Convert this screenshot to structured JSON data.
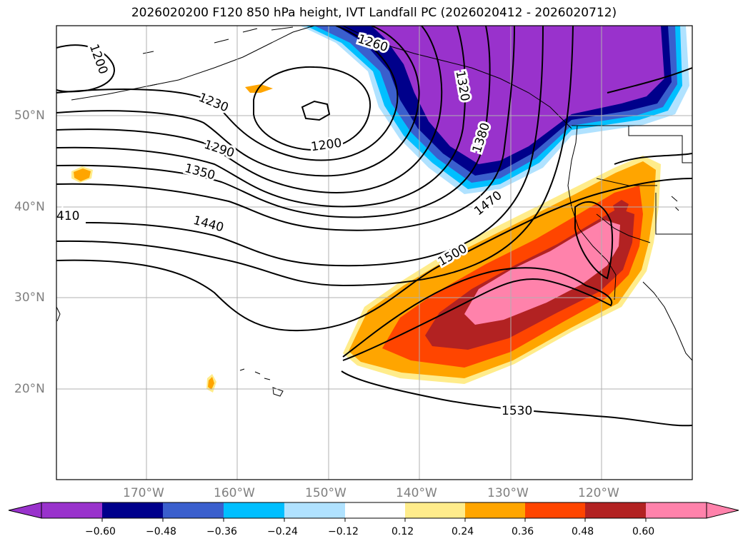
{
  "title": "2026020200 F120 850 hPa height, IVT Landfall PC (2026020412 - 2026020712)",
  "lat_labels": [
    "50°N",
    "40°N",
    "30°N",
    "20°N"
  ],
  "lon_labels": [
    "170°W",
    "160°W",
    "150°W",
    "140°W",
    "130°W",
    "120°W"
  ],
  "contour_labels": [
    "1200",
    "1200",
    "1230",
    "1260",
    "1290",
    "1320",
    "1350",
    "1380",
    "410",
    "1440",
    "1470",
    "1500",
    "1530"
  ],
  "colorbar": {
    "ticks": [
      "−0.60",
      "−0.48",
      "−0.36",
      "−0.24",
      "−0.12",
      "0.12",
      "0.24",
      "0.36",
      "0.48",
      "0.60"
    ],
    "colors": [
      "#9932cc",
      "#00008b",
      "#3a5fcd",
      "#00bfff",
      "#b0e2ff",
      "#ffffff",
      "#ffec8b",
      "#ffa500",
      "#ff4500",
      "#b22222",
      "#ff82ab"
    ]
  }
}
